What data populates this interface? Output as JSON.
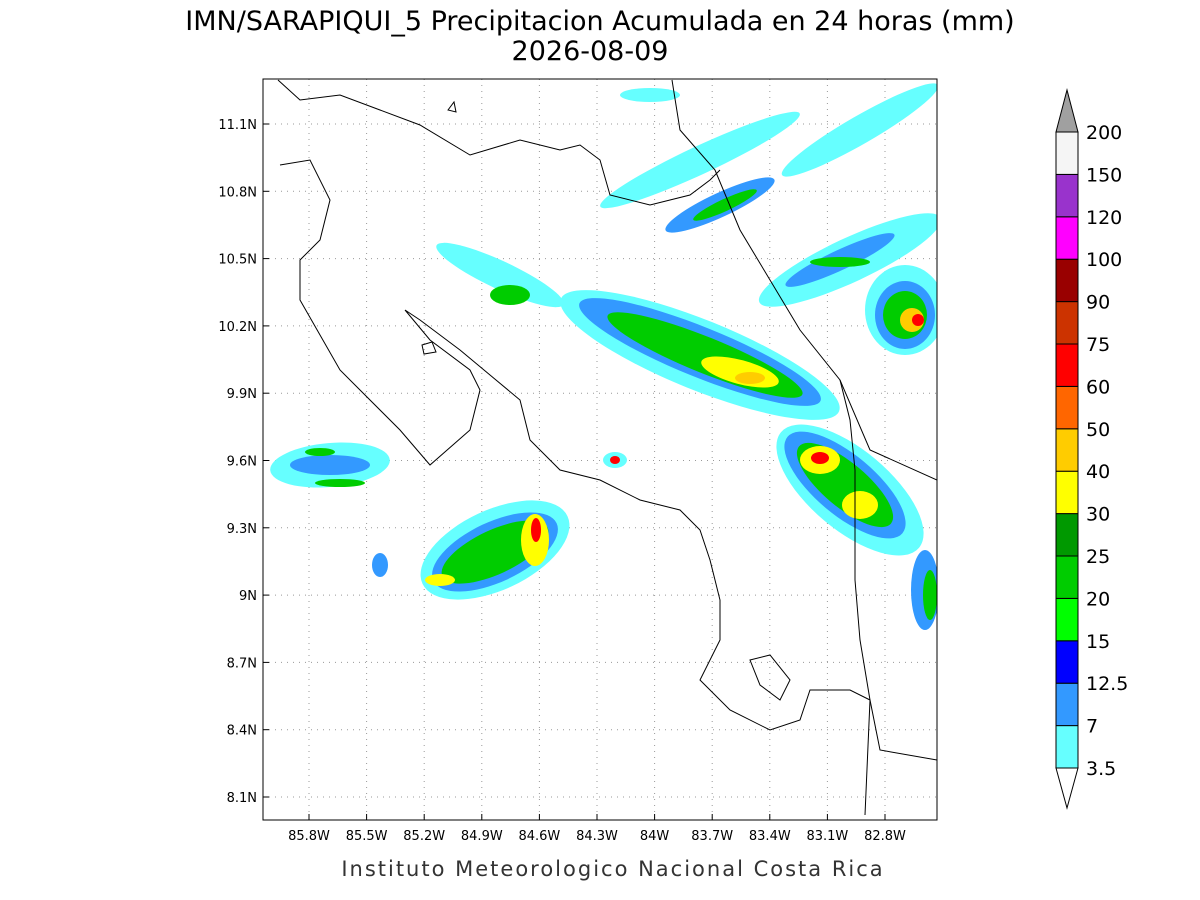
{
  "title": "IMN/SARAPIQUI_5 Precipitacion Acumulada en 24 horas (mm)",
  "subtitle": "2026-08-09",
  "map": {
    "xticks": [
      {
        "value": -85.8,
        "label": "85.8W"
      },
      {
        "value": -85.5,
        "label": "85.5W"
      },
      {
        "value": -85.2,
        "label": "85.2W"
      },
      {
        "value": -84.9,
        "label": "84.9W"
      },
      {
        "value": -84.6,
        "label": "84.6W"
      },
      {
        "value": -84.3,
        "label": "84.3W"
      },
      {
        "value": -84.0,
        "label": "84W"
      },
      {
        "value": -83.7,
        "label": "83.7W"
      },
      {
        "value": -83.4,
        "label": "83.4W"
      },
      {
        "value": -83.1,
        "label": "83.1W"
      },
      {
        "value": -82.8,
        "label": "82.8W"
      }
    ],
    "yticks": [
      {
        "value": 11.1,
        "label": "11.1N"
      },
      {
        "value": 10.8,
        "label": "10.8N"
      },
      {
        "value": 10.5,
        "label": "10.5N"
      },
      {
        "value": 10.2,
        "label": "10.2N"
      },
      {
        "value": 9.9,
        "label": "9.9N"
      },
      {
        "value": 9.6,
        "label": "9.6N"
      },
      {
        "value": 9.3,
        "label": "9.3N"
      },
      {
        "value": 9.0,
        "label": "9N"
      },
      {
        "value": 8.7,
        "label": "8.7N"
      },
      {
        "value": 8.4,
        "label": "8.4N"
      },
      {
        "value": 8.1,
        "label": "8.1N"
      }
    ]
  },
  "colorbar": {
    "levels": [
      3.5,
      7,
      12.5,
      15,
      20,
      25,
      30,
      40,
      50,
      60,
      75,
      90,
      100,
      120,
      150,
      200
    ],
    "colors": [
      "#66ffff",
      "#3399ff",
      "#0000ff",
      "#00ff00",
      "#00cc00",
      "#009900",
      "#ffff00",
      "#ffcc00",
      "#ff6600",
      "#ff0000",
      "#cc3300",
      "#990000",
      "#ff00ff",
      "#9933cc",
      "#f5f5f5"
    ],
    "under_color": "#ffffff",
    "over_color": "#a0a0a0"
  },
  "footer": "Instituto Meteorologico Nacional Costa Rica"
}
